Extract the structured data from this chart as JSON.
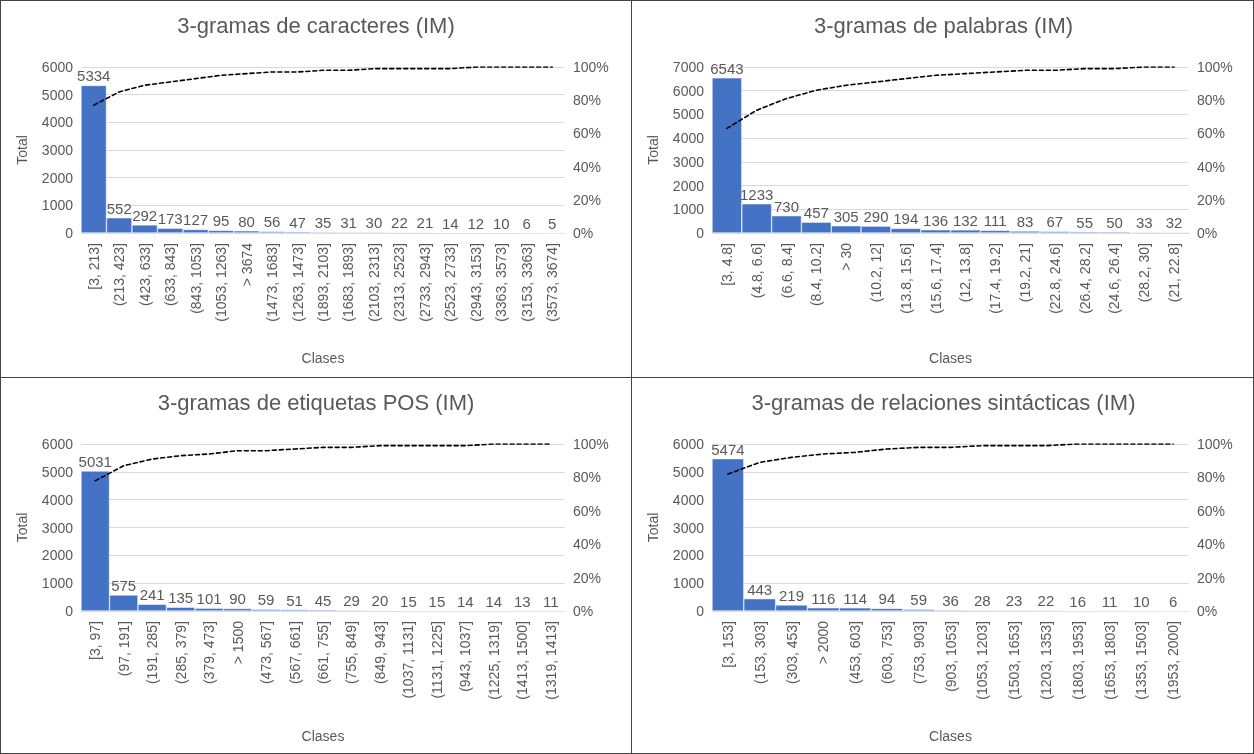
{
  "chart_data": [
    {
      "type": "bar",
      "title": "3-gramas de caracteres (IM)",
      "xlabel": "Clases",
      "ylabel": "Total",
      "categories": [
        "[3, 213]",
        "(213, 423]",
        "(423, 633]",
        "(633, 843]",
        "(843, 1053]",
        "(1053, 1263]",
        "> 3674",
        "(1473, 1683]",
        "(1263, 1473]",
        "(1893, 2103]",
        "(1683, 1893]",
        "(2103, 2313]",
        "(2313, 2523]",
        "(2733, 2943]",
        "(2523, 2733]",
        "(2943, 3153]",
        "(3363, 3573]",
        "(3153, 3363]",
        "(3573, 3674]"
      ],
      "series": [
        {
          "color": "#4472c4",
          "values": [
            5334,
            552,
            292,
            173,
            127,
            95,
            80,
            56,
            47,
            35,
            31,
            30,
            22,
            21,
            14,
            12,
            10,
            6,
            5
          ]
        },
        {
          "type": "line",
          "axis": "y2",
          "color": "#000000",
          "line_style": "dashed",
          "marker": "none",
          "data_labels": false,
          "values": [
            77,
            85,
            89,
            91,
            93,
            95,
            96,
            97,
            97,
            98,
            98,
            99,
            99,
            99,
            99,
            100,
            100,
            100,
            100
          ]
        }
      ],
      "data_labels": true,
      "grid": "y",
      "ylim": [
        0,
        6000
      ],
      "yticks": [
        0,
        1000,
        2000,
        3000,
        4000,
        5000,
        6000
      ],
      "y2lim": [
        0,
        100
      ],
      "y2ticks": [
        {
          "value": 0,
          "label": "0%"
        },
        {
          "value": 20,
          "label": "20%"
        },
        {
          "value": 40,
          "label": "40%"
        },
        {
          "value": 60,
          "label": "60%"
        },
        {
          "value": 80,
          "label": "80%"
        },
        {
          "value": 100,
          "label": "100%"
        }
      ]
    },
    {
      "type": "bar",
      "title": "3-gramas de palabras (IM)",
      "xlabel": "Clases",
      "ylabel": "Total",
      "categories": [
        "[3, 4.8]",
        "(4.8, 6.6]",
        "(6.6, 8.4]",
        "(8.4, 10.2]",
        "> 30",
        "(10.2, 12]",
        "(13.8, 15.6]",
        "(15.6, 17.4]",
        "(12, 13.8]",
        "(17.4, 19.2]",
        "(19.2, 21]",
        "(22.8, 24.6]",
        "(26.4, 28.2]",
        "(24.6, 26.4]",
        "(28.2, 30]",
        "(21, 22.8]"
      ],
      "series": [
        {
          "color": "#4472c4",
          "values": [
            6543,
            1233,
            730,
            457,
            305,
            290,
            194,
            136,
            132,
            111,
            83,
            67,
            55,
            50,
            33,
            32
          ]
        },
        {
          "type": "line",
          "axis": "y2",
          "color": "#000000",
          "line_style": "dashed",
          "marker": "none",
          "data_labels": false,
          "values": [
            63,
            74,
            81,
            86,
            89,
            91,
            93,
            95,
            96,
            97,
            98,
            98,
            99,
            99,
            100,
            100
          ]
        }
      ],
      "data_labels": true,
      "grid": "y",
      "ylim": [
        0,
        7000
      ],
      "yticks": [
        0,
        1000,
        2000,
        3000,
        4000,
        5000,
        6000,
        7000
      ],
      "y2lim": [
        0,
        100
      ],
      "y2ticks": [
        {
          "value": 0,
          "label": "0%"
        },
        {
          "value": 20,
          "label": "20%"
        },
        {
          "value": 40,
          "label": "40%"
        },
        {
          "value": 60,
          "label": "60%"
        },
        {
          "value": 80,
          "label": "80%"
        },
        {
          "value": 100,
          "label": "100%"
        }
      ]
    },
    {
      "type": "bar",
      "title": "3-gramas de etiquetas POS (IM)",
      "xlabel": "Clases",
      "ylabel": "Total",
      "categories": [
        "[3, 97]",
        "(97, 191]",
        "(191, 285]",
        "(285, 379]",
        "(379, 473]",
        "> 1500",
        "(473, 567]",
        "(567, 661]",
        "(661, 755]",
        "(755, 849]",
        "(849, 943]",
        "(1037, 1131]",
        "(1131, 1225]",
        "(943, 1037]",
        "(1225, 1319]",
        "(1413, 1500]",
        "(1319, 1413]"
      ],
      "series": [
        {
          "color": "#4472c4",
          "values": [
            5031,
            575,
            241,
            135,
            101,
            90,
            59,
            51,
            45,
            29,
            20,
            15,
            15,
            14,
            14,
            13,
            11
          ]
        },
        {
          "type": "line",
          "axis": "y2",
          "color": "#000000",
          "line_style": "dashed",
          "marker": "none",
          "data_labels": false,
          "values": [
            78,
            87,
            91,
            93,
            94,
            96,
            96,
            97,
            98,
            98,
            99,
            99,
            99,
            99,
            100,
            100,
            100
          ]
        }
      ],
      "data_labels": true,
      "grid": "y",
      "ylim": [
        0,
        6000
      ],
      "yticks": [
        0,
        1000,
        2000,
        3000,
        4000,
        5000,
        6000
      ],
      "y2lim": [
        0,
        100
      ],
      "y2ticks": [
        {
          "value": 0,
          "label": "0%"
        },
        {
          "value": 20,
          "label": "20%"
        },
        {
          "value": 40,
          "label": "40%"
        },
        {
          "value": 60,
          "label": "60%"
        },
        {
          "value": 80,
          "label": "80%"
        },
        {
          "value": 100,
          "label": "100%"
        }
      ]
    },
    {
      "type": "bar",
      "title": "3-gramas de relaciones sintácticas (IM)",
      "xlabel": "Clases",
      "ylabel": "Total",
      "categories": [
        "[3, 153]",
        "(153, 303]",
        "(303, 453]",
        "> 2000",
        "(453, 603]",
        "(603, 753]",
        "(753, 903]",
        "(903, 1053]",
        "(1053, 1203]",
        "(1503, 1653]",
        "(1203, 1353]",
        "(1803, 1953]",
        "(1653, 1803]",
        "(1353, 1503]",
        "(1953, 2000]"
      ],
      "series": [
        {
          "color": "#4472c4",
          "values": [
            5474,
            443,
            219,
            116,
            114,
            94,
            59,
            36,
            28,
            23,
            22,
            16,
            11,
            10,
            6
          ]
        },
        {
          "type": "line",
          "axis": "y2",
          "color": "#000000",
          "line_style": "dashed",
          "marker": "none",
          "data_labels": false,
          "values": [
            82,
            89,
            92,
            94,
            95,
            97,
            98,
            98,
            99,
            99,
            99,
            100,
            100,
            100,
            100
          ]
        }
      ],
      "data_labels": true,
      "grid": "y",
      "ylim": [
        0,
        6000
      ],
      "yticks": [
        0,
        1000,
        2000,
        3000,
        4000,
        5000,
        6000
      ],
      "y2lim": [
        0,
        100
      ],
      "y2ticks": [
        {
          "value": 0,
          "label": "0%"
        },
        {
          "value": 20,
          "label": "20%"
        },
        {
          "value": 40,
          "label": "40%"
        },
        {
          "value": 60,
          "label": "60%"
        },
        {
          "value": 80,
          "label": "80%"
        },
        {
          "value": 100,
          "label": "100%"
        }
      ]
    }
  ]
}
